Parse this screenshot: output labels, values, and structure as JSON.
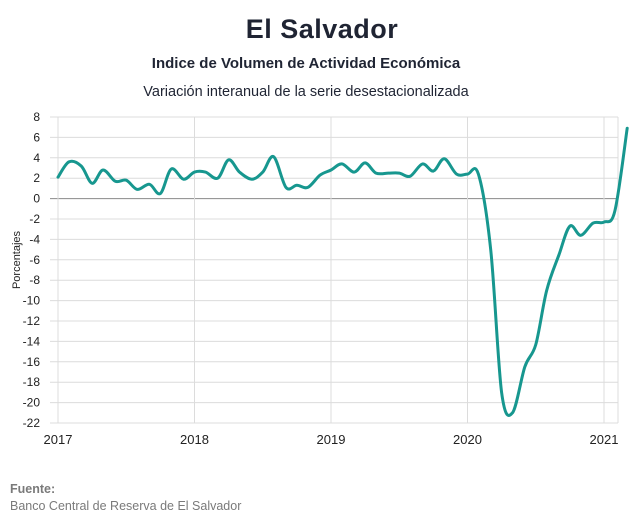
{
  "chart_data": {
    "type": "line",
    "title": "El Salvador",
    "subtitle": "Indice de Volumen de  Actividad Económica",
    "subtitle2": "Variación interanual de la serie desestacionalizada",
    "xlabel": "",
    "ylabel": "Porcentajes",
    "ylim": [
      -22,
      8
    ],
    "yticks": [
      8,
      6,
      4,
      2,
      0,
      -2,
      -4,
      -6,
      -8,
      -10,
      -12,
      -14,
      -16,
      -18,
      -20,
      -22
    ],
    "xlim": [
      2017,
      2021.25
    ],
    "xticks": [
      "2017",
      "2018",
      "2019",
      "2020",
      "2021"
    ],
    "grid": true,
    "legend": "none",
    "series": [
      {
        "color": "#17978f",
        "points": [
          [
            2017.0,
            2.1
          ],
          [
            2017.08,
            3.6
          ],
          [
            2017.17,
            3.2
          ],
          [
            2017.25,
            1.5
          ],
          [
            2017.33,
            2.8
          ],
          [
            2017.42,
            1.7
          ],
          [
            2017.5,
            1.8
          ],
          [
            2017.58,
            0.9
          ],
          [
            2017.67,
            1.4
          ],
          [
            2017.75,
            0.5
          ],
          [
            2017.83,
            2.9
          ],
          [
            2017.92,
            1.9
          ],
          [
            2018.0,
            2.6
          ],
          [
            2018.08,
            2.6
          ],
          [
            2018.17,
            2.0
          ],
          [
            2018.25,
            3.8
          ],
          [
            2018.33,
            2.6
          ],
          [
            2018.42,
            1.9
          ],
          [
            2018.5,
            2.6
          ],
          [
            2018.58,
            4.1
          ],
          [
            2018.67,
            1.1
          ],
          [
            2018.75,
            1.3
          ],
          [
            2018.83,
            1.1
          ],
          [
            2018.92,
            2.3
          ],
          [
            2019.0,
            2.8
          ],
          [
            2019.08,
            3.4
          ],
          [
            2019.17,
            2.6
          ],
          [
            2019.25,
            3.5
          ],
          [
            2019.33,
            2.5
          ],
          [
            2019.42,
            2.5
          ],
          [
            2019.5,
            2.5
          ],
          [
            2019.58,
            2.2
          ],
          [
            2019.67,
            3.4
          ],
          [
            2019.75,
            2.7
          ],
          [
            2019.83,
            3.9
          ],
          [
            2019.92,
            2.4
          ],
          [
            2020.0,
            2.4
          ],
          [
            2020.08,
            2.4
          ],
          [
            2020.17,
            -5.0
          ],
          [
            2020.25,
            -19.0
          ],
          [
            2020.33,
            -21.0
          ],
          [
            2020.42,
            -16.5
          ],
          [
            2020.5,
            -14.3
          ],
          [
            2020.58,
            -9.0
          ],
          [
            2020.67,
            -5.5
          ],
          [
            2020.75,
            -2.7
          ],
          [
            2020.83,
            -3.6
          ],
          [
            2020.92,
            -2.4
          ],
          [
            2021.0,
            -2.3
          ],
          [
            2021.08,
            -1.2
          ],
          [
            2021.17,
            6.9
          ]
        ]
      }
    ]
  },
  "footer": {
    "label": "Fuente:",
    "source": "Banco Central de Reserva de El Salvador"
  }
}
